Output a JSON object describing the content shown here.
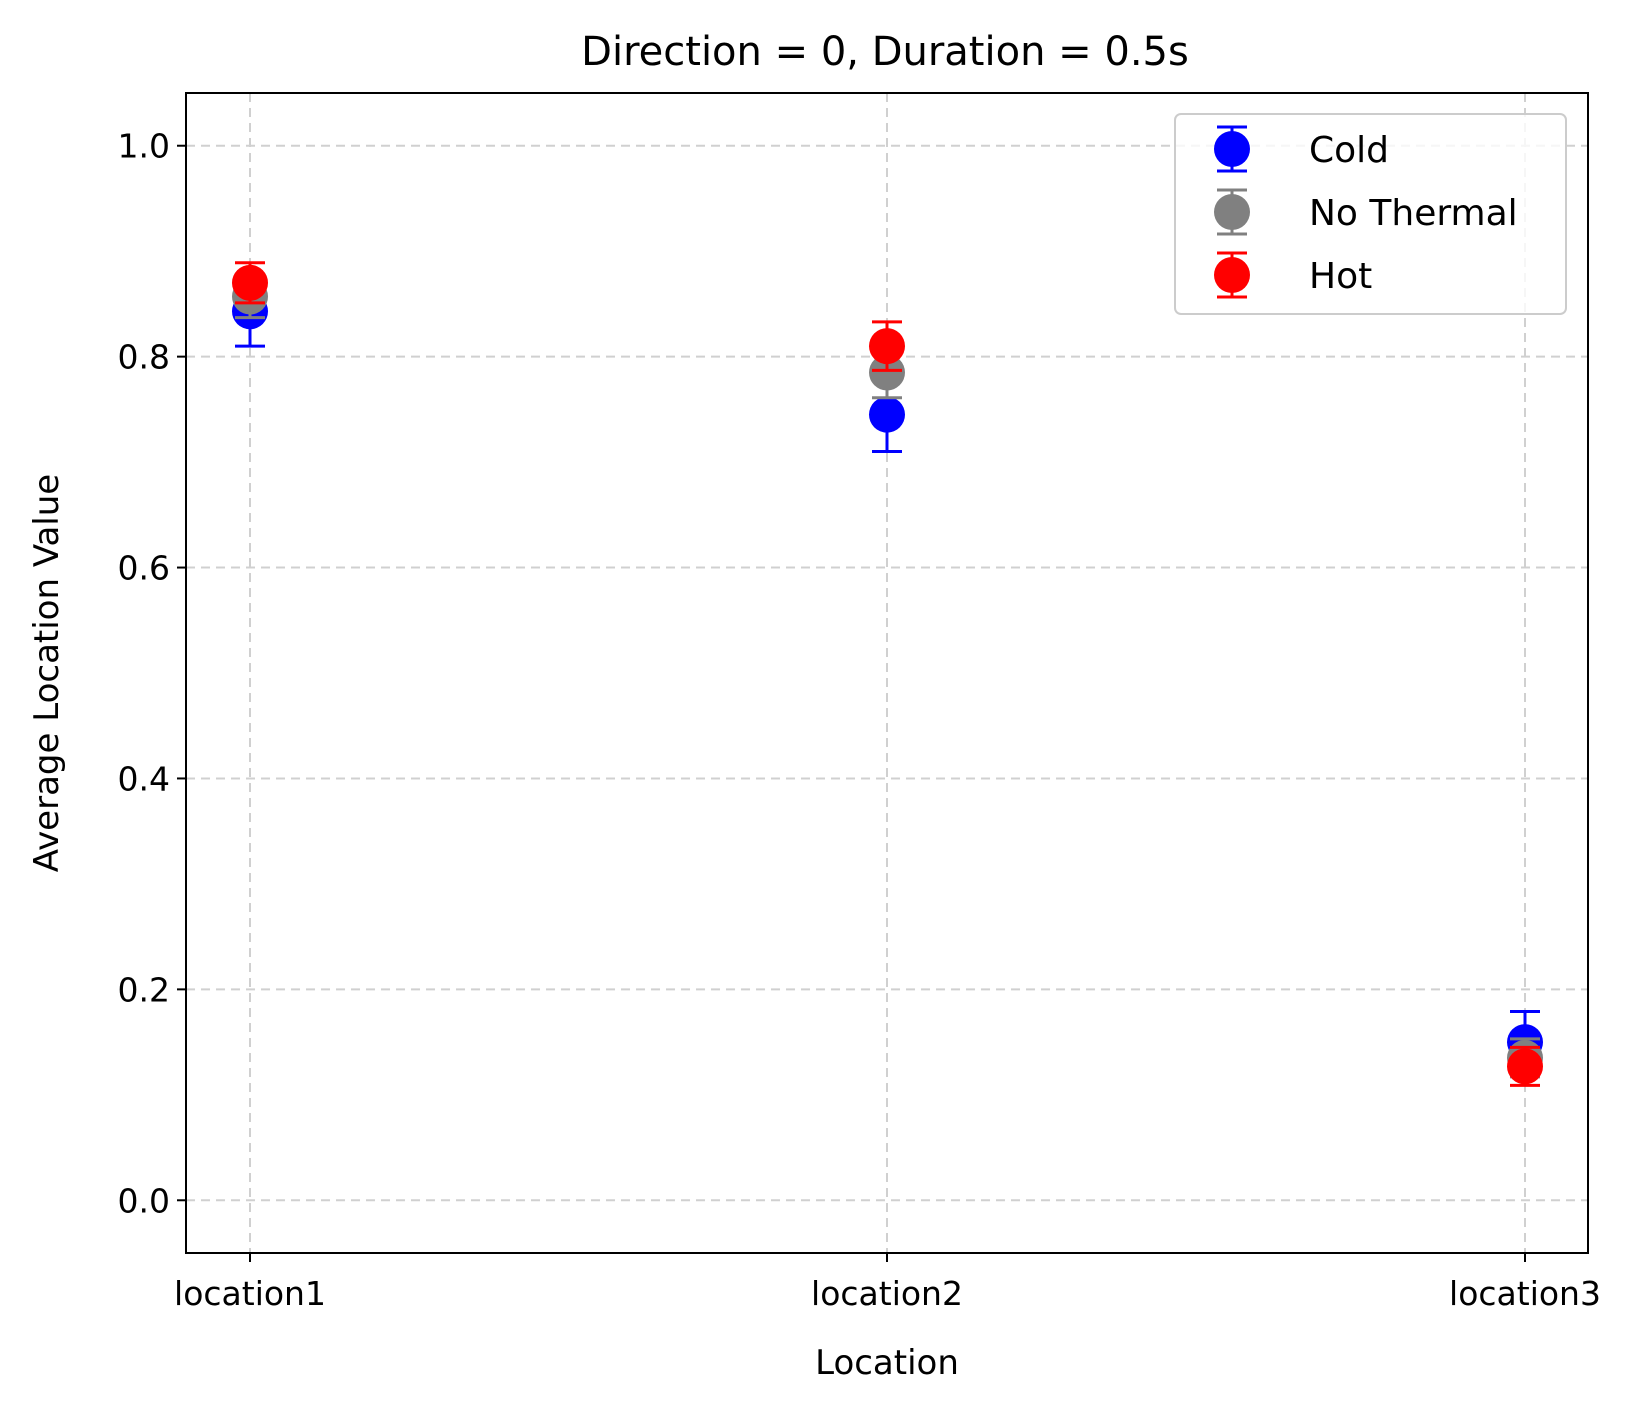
{
  "chart_data": {
    "type": "scatter",
    "title": "Direction = 0, Duration = 0.5s",
    "xlabel": "Location",
    "ylabel": "Average Location Value",
    "categories": [
      "location1",
      "location2",
      "location3"
    ],
    "ylim": [
      -0.05,
      1.05
    ],
    "yticks": [
      "0.0",
      "0.2",
      "0.4",
      "0.6",
      "0.8",
      "1.0"
    ],
    "grid": true,
    "legend_position": "top-right",
    "series": [
      {
        "name": "Cold",
        "color": "#0000ff",
        "values": [
          0.843,
          0.745,
          0.15
        ],
        "errors": [
          0.033,
          0.035,
          0.029
        ]
      },
      {
        "name": "No Thermal",
        "color": "#808080",
        "values": [
          0.857,
          0.785,
          0.135
        ],
        "errors": [
          0.02,
          0.024,
          0.018
        ]
      },
      {
        "name": "Hot",
        "color": "#ff0000",
        "values": [
          0.87,
          0.81,
          0.127
        ],
        "errors": [
          0.019,
          0.023,
          0.018
        ]
      }
    ]
  }
}
